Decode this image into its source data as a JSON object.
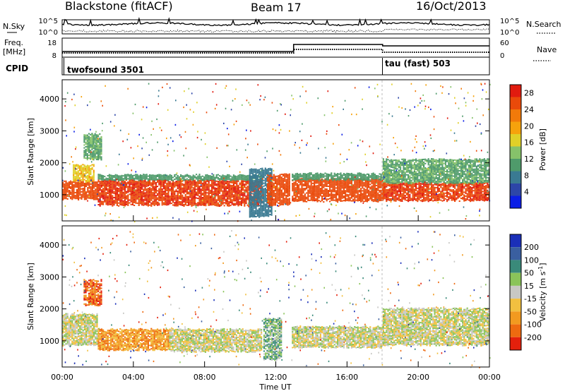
{
  "header": {
    "station": "Blackstone (fitACF)",
    "beam": "Beam 17",
    "date": "16/Oct/2013"
  },
  "noise_panel": {
    "left_label": "N.Sky",
    "right_label": "N.Search",
    "left_ticks": [
      "10^5",
      "10^0"
    ],
    "right_ticks": [
      "10^5",
      "10^0"
    ]
  },
  "freq_panel": {
    "left_label_1": "Freq.",
    "left_label_2": "[MHz]",
    "right_label": "Nave",
    "left_ticks": [
      "18",
      "8"
    ],
    "right_ticks": [
      "60",
      "0"
    ]
  },
  "cpid_panel": {
    "label": "CPID",
    "modes": [
      {
        "name": "twofsound 3501",
        "start_hour": 0,
        "end_hour": 18
      },
      {
        "name": "tau (fast) 503",
        "start_hour": 18,
        "end_hour": 24
      }
    ]
  },
  "chart_data": [
    {
      "type": "heatmap",
      "name": "power",
      "ylabel": "Slant Range [km]",
      "xlim": [
        0,
        24
      ],
      "ylim": [
        180,
        4600
      ],
      "yticks": [
        1000,
        2000,
        3000,
        4000
      ],
      "colorbar": {
        "label": "Power [dB]",
        "ticks": [
          "4",
          "8",
          "12",
          "16",
          "20",
          "24",
          "28"
        ],
        "range": [
          0,
          30
        ],
        "colors": [
          "#0b1ee6",
          "#2d46a8",
          "#3a7a92",
          "#4f9b6b",
          "#86c26a",
          "#e0d028",
          "#f6a20c",
          "#f27a0a",
          "#ea4a0a",
          "#e11b0f"
        ]
      },
      "bands": [
        {
          "hours": [
            0,
            2.0
          ],
          "range_km": [
            850,
            1400
          ],
          "level": 25
        },
        {
          "hours": [
            0.6,
            1.8
          ],
          "range_km": [
            1400,
            1900
          ],
          "level": 17
        },
        {
          "hours": [
            1.2,
            2.2
          ],
          "range_km": [
            2100,
            2900
          ],
          "level": 11
        },
        {
          "hours": [
            2.0,
            11.2
          ],
          "range_km": [
            650,
            1450
          ],
          "level": 26
        },
        {
          "hours": [
            2.0,
            11.2
          ],
          "range_km": [
            1450,
            1600
          ],
          "level": 10
        },
        {
          "hours": [
            10.5,
            11.8
          ],
          "range_km": [
            300,
            1800
          ],
          "level": 7
        },
        {
          "hours": [
            11.5,
            12.8
          ],
          "range_km": [
            650,
            1600
          ],
          "level": 25
        },
        {
          "hours": [
            12.9,
            18.0
          ],
          "range_km": [
            780,
            1500
          ],
          "level": 25
        },
        {
          "hours": [
            12.9,
            18.0
          ],
          "range_km": [
            1450,
            1650
          ],
          "level": 10
        },
        {
          "hours": [
            18.0,
            24.0
          ],
          "range_km": [
            800,
            1350
          ],
          "level": 26
        },
        {
          "hours": [
            18.0,
            24.0
          ],
          "range_km": [
            1350,
            2100
          ],
          "level": 11
        }
      ]
    },
    {
      "type": "heatmap",
      "name": "velocity",
      "xlabel": "Time UT",
      "ylabel": "Slant Range [km]",
      "xlim": [
        0,
        24
      ],
      "ylim": [
        180,
        4600
      ],
      "yticks": [
        1000,
        2000,
        3000,
        4000
      ],
      "xticks": [
        "00:00",
        "04:00",
        "08:00",
        "12:00",
        "16:00",
        "20:00",
        "00:00"
      ],
      "colorbar": {
        "label": "Velocity [m s-1]",
        "ticks": [
          "200",
          "100",
          "50",
          "15",
          "-15",
          "-50",
          "-100",
          "-200"
        ],
        "colors": [
          "#1a2fb8",
          "#3a5fa0",
          "#3a8a7a",
          "#8ac45a",
          "#c8c8c4",
          "#f2c040",
          "#f29a20",
          "#ee6a10",
          "#e4200c"
        ]
      },
      "bands": [
        {
          "hours": [
            0,
            2.0
          ],
          "range_km": [
            850,
            1800
          ],
          "level": 4
        },
        {
          "hours": [
            1.2,
            2.2
          ],
          "range_km": [
            2100,
            2900
          ],
          "level": 7
        },
        {
          "hours": [
            2.0,
            6.0
          ],
          "range_km": [
            700,
            1350
          ],
          "level": 6
        },
        {
          "hours": [
            6.0,
            11.2
          ],
          "range_km": [
            650,
            1350
          ],
          "level": 4
        },
        {
          "hours": [
            11.3,
            12.3
          ],
          "range_km": [
            400,
            1700
          ],
          "level": 3
        },
        {
          "hours": [
            12.9,
            18.0
          ],
          "range_km": [
            780,
            1450
          ],
          "level": 4
        },
        {
          "hours": [
            18.0,
            24.0
          ],
          "range_km": [
            850,
            2000
          ],
          "level": 4
        }
      ]
    }
  ]
}
